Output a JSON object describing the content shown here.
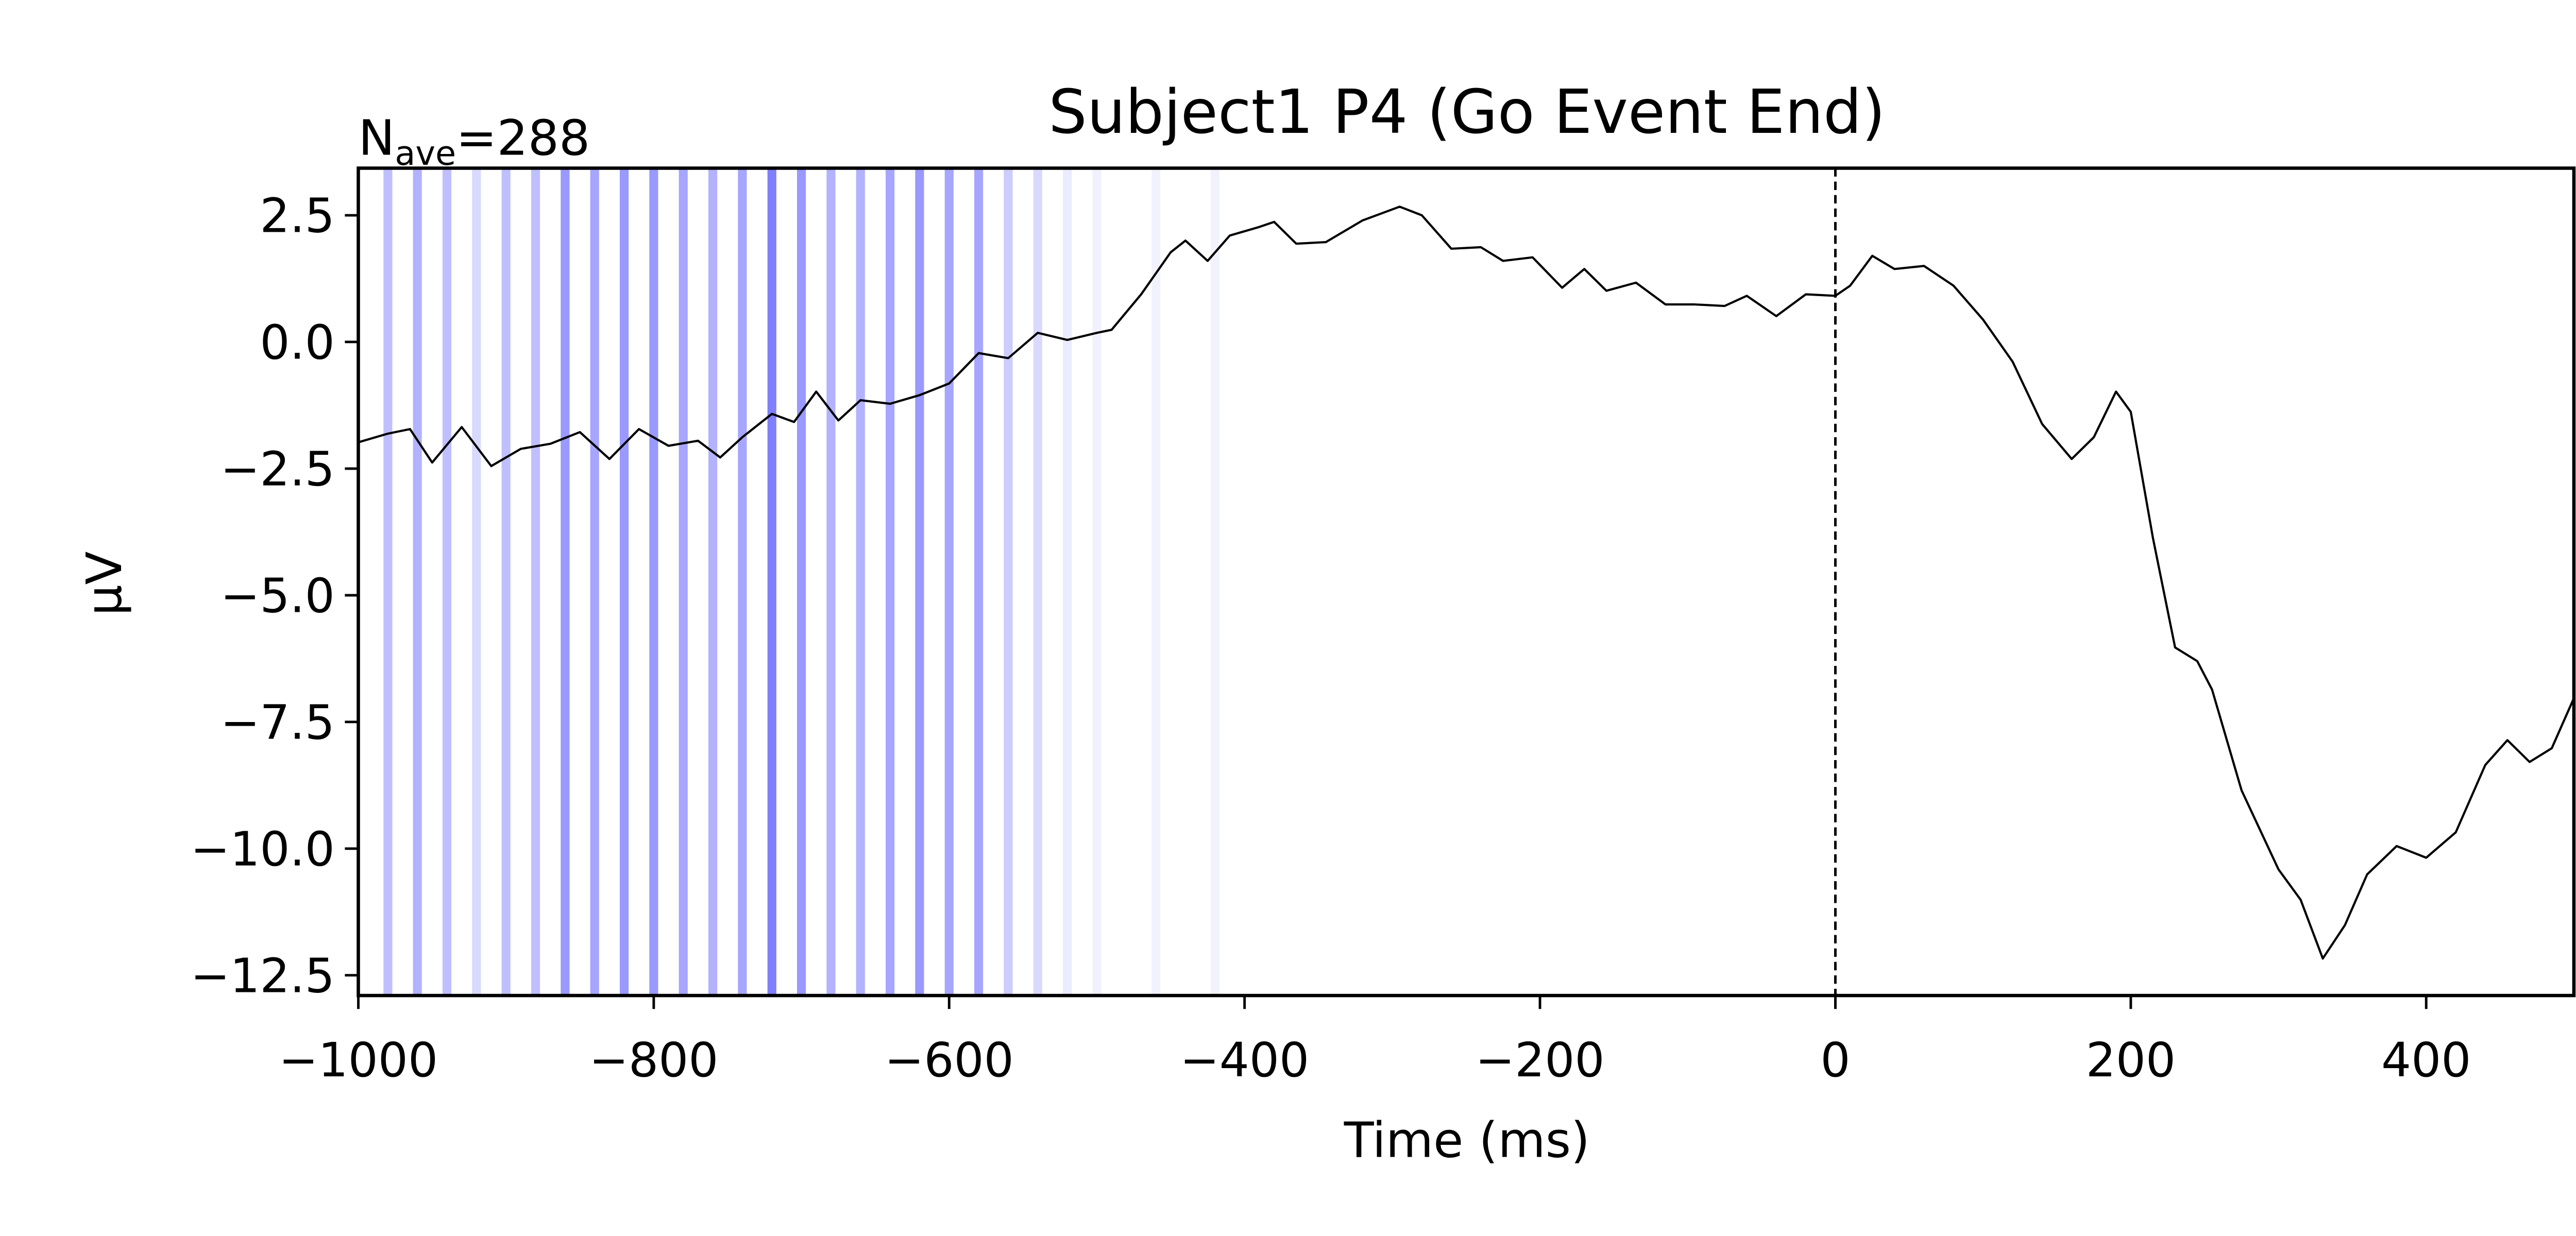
{
  "chart_data": {
    "type": "line",
    "title": "Subject1 P4 (Go Event End)",
    "xlabel": "Time (ms)",
    "ylabel": "µV",
    "annotation": {
      "symbol": "N",
      "subscript": "ave",
      "value": "=288"
    },
    "color": "#000000",
    "x": [
      -1000,
      -980,
      -965,
      -950,
      -930,
      -910,
      -890,
      -870,
      -850,
      -830,
      -810,
      -790,
      -770,
      -755,
      -740,
      -720,
      -705,
      -690,
      -675,
      -660,
      -640,
      -620,
      -600,
      -580,
      -560,
      -540,
      -520,
      -500,
      -490,
      -470,
      -450,
      -440,
      -425,
      -410,
      -390,
      -380,
      -365,
      -345,
      -320,
      -295,
      -280,
      -260,
      -240,
      -225,
      -205,
      -185,
      -170,
      -155,
      -135,
      -115,
      -95,
      -75,
      -60,
      -40,
      -20,
      0,
      10,
      25,
      40,
      60,
      80,
      100,
      120,
      140,
      160,
      175,
      190,
      200,
      215,
      230,
      245,
      255,
      275,
      300,
      315,
      330,
      345,
      360,
      380,
      400,
      420,
      440,
      455,
      470,
      485,
      500
    ],
    "values": [
      -1.98,
      -1.81,
      -1.72,
      -2.38,
      -1.68,
      -2.45,
      -2.11,
      -2.01,
      -1.78,
      -2.31,
      -1.72,
      -2.05,
      -1.95,
      -2.28,
      -1.88,
      -1.42,
      -1.58,
      -0.98,
      -1.55,
      -1.15,
      -1.22,
      -1.05,
      -0.82,
      -0.22,
      -0.32,
      0.18,
      0.04,
      0.18,
      0.24,
      0.94,
      1.77,
      2.0,
      1.6,
      2.1,
      2.27,
      2.37,
      1.94,
      1.97,
      2.4,
      2.67,
      2.5,
      1.84,
      1.87,
      1.6,
      1.67,
      1.07,
      1.44,
      1.01,
      1.17,
      0.74,
      0.74,
      0.71,
      0.91,
      0.51,
      0.94,
      0.91,
      1.11,
      1.7,
      1.44,
      1.5,
      1.11,
      0.44,
      -0.39,
      -1.62,
      -2.31,
      -1.88,
      -0.98,
      -1.38,
      -3.87,
      -6.03,
      -6.3,
      -6.86,
      -8.85,
      -10.41,
      -11.01,
      -12.17,
      -11.51,
      -10.51,
      -9.95,
      -10.18,
      -9.68,
      -8.35,
      -7.86,
      -8.29,
      -8.02,
      -7.03
    ],
    "bands": {
      "color": "#0000ff",
      "width": 6,
      "x": [
        -980,
        -960,
        -940,
        -920,
        -900,
        -880,
        -860,
        -840,
        -820,
        -800,
        -780,
        -760,
        -740,
        -720,
        -700,
        -680,
        -660,
        -640,
        -620,
        -600,
        -580,
        -560,
        -540,
        -520,
        -500,
        -460,
        -420
      ],
      "opacity": [
        0.25,
        0.3,
        0.25,
        0.15,
        0.25,
        0.25,
        0.4,
        0.35,
        0.4,
        0.4,
        0.35,
        0.3,
        0.35,
        0.5,
        0.4,
        0.3,
        0.3,
        0.35,
        0.4,
        0.35,
        0.35,
        0.2,
        0.15,
        0.08,
        0.06,
        0.05,
        0.05
      ]
    },
    "vline": 0,
    "xlim": [
      -1000,
      500
    ],
    "ylim": [
      -12.9,
      3.43
    ],
    "xticks": [
      {
        "value": -1000,
        "label": "−1000"
      },
      {
        "value": -800,
        "label": "−800"
      },
      {
        "value": -600,
        "label": "−600"
      },
      {
        "value": -400,
        "label": "−400"
      },
      {
        "value": -200,
        "label": "−200"
      },
      0,
      200,
      400
    ],
    "yticks": [
      {
        "value": 2.5,
        "label": "2.5"
      },
      {
        "value": 0,
        "label": "0.0"
      },
      {
        "value": -2.5,
        "label": "−2.5"
      },
      {
        "value": -5,
        "label": "−5.0"
      },
      {
        "value": -7.5,
        "label": "−7.5"
      },
      {
        "value": -10,
        "label": "−10.0"
      },
      {
        "value": -12.5,
        "label": "−12.5"
      }
    ]
  }
}
